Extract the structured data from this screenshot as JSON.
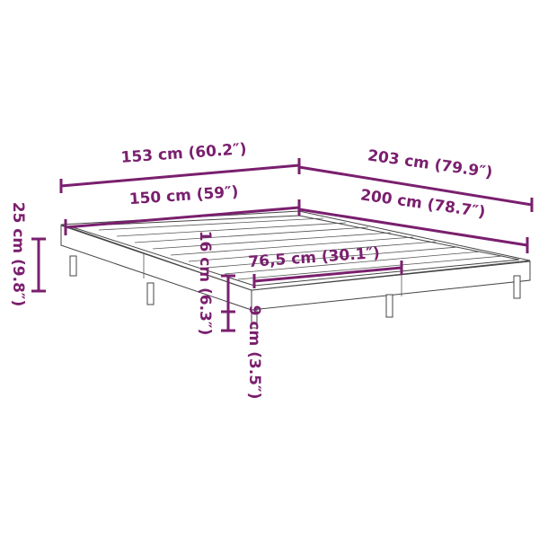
{
  "accent_color": "#7a1f6e",
  "dimensions": {
    "outer_width": "153 cm (60.2″)",
    "outer_length": "203 cm (79.9″)",
    "inner_width": "150 cm (59″)",
    "inner_length": "200 cm (78.7″)",
    "total_height": "25 cm (9.8″)",
    "frame_height": "16 cm (6.3″)",
    "clearance": "9 cm (3.5″)",
    "half_width": "76,5 cm (30.1″)"
  }
}
